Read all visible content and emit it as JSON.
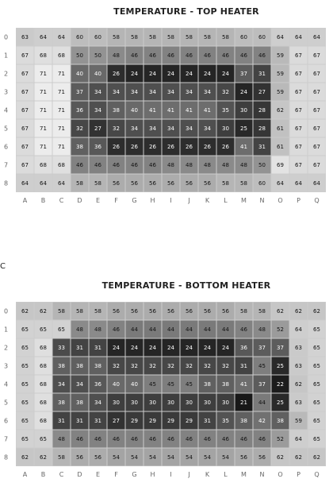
{
  "chart_data": [
    {
      "type": "heatmap",
      "panel": "",
      "title": "TEMPERATURE - TOP HEATER",
      "x_labels": [
        "A",
        "B",
        "C",
        "D",
        "E",
        "F",
        "G",
        "H",
        "I",
        "J",
        "K",
        "L",
        "M",
        "N",
        "O",
        "P",
        "Q"
      ],
      "y_labels": [
        "0",
        "1",
        "2",
        "3",
        "4",
        "5",
        "6",
        "7",
        "8"
      ],
      "values": [
        [
          63,
          64,
          64,
          60,
          60,
          58,
          58,
          58,
          58,
          58,
          58,
          58,
          60,
          60,
          64,
          64,
          64
        ],
        [
          67,
          68,
          68,
          50,
          50,
          48,
          46,
          46,
          46,
          46,
          46,
          46,
          46,
          46,
          59,
          67,
          67
        ],
        [
          67,
          71,
          71,
          40,
          40,
          26,
          24,
          24,
          24,
          24,
          24,
          24,
          37,
          31,
          59,
          67,
          67
        ],
        [
          67,
          71,
          71,
          37,
          34,
          34,
          34,
          34,
          34,
          34,
          34,
          32,
          24,
          27,
          59,
          67,
          67
        ],
        [
          67,
          71,
          71,
          36,
          34,
          38,
          40,
          41,
          41,
          41,
          41,
          35,
          30,
          28,
          62,
          67,
          67
        ],
        [
          67,
          71,
          71,
          32,
          27,
          32,
          34,
          34,
          34,
          34,
          34,
          30,
          25,
          28,
          61,
          67,
          67
        ],
        [
          67,
          71,
          71,
          38,
          36,
          26,
          26,
          26,
          26,
          26,
          26,
          26,
          41,
          31,
          61,
          67,
          67
        ],
        [
          67,
          68,
          68,
          46,
          46,
          46,
          46,
          46,
          48,
          48,
          48,
          48,
          48,
          50,
          69,
          67,
          67
        ],
        [
          64,
          64,
          64,
          58,
          58,
          56,
          56,
          56,
          56,
          56,
          56,
          58,
          58,
          60,
          64,
          64,
          64
        ]
      ],
      "color_scale": {
        "low": "#000000",
        "high": "#ffffff",
        "min": 20,
        "max": 72
      }
    },
    {
      "type": "heatmap",
      "panel": "C",
      "title": "TEMPERATURE - BOTTOM HEATER",
      "x_labels": [
        "A",
        "B",
        "C",
        "D",
        "E",
        "F",
        "G",
        "H",
        "I",
        "J",
        "K",
        "L",
        "M",
        "N",
        "O",
        "P",
        "Q"
      ],
      "y_labels": [
        "0",
        "1",
        "2",
        "3",
        "4",
        "5",
        "6",
        "7",
        "8"
      ],
      "values": [
        [
          62,
          62,
          58,
          58,
          58,
          56,
          56,
          56,
          56,
          56,
          56,
          56,
          58,
          58,
          62,
          62,
          62
        ],
        [
          65,
          65,
          65,
          48,
          48,
          46,
          44,
          44,
          44,
          44,
          44,
          44,
          46,
          48,
          52,
          64,
          65
        ],
        [
          65,
          68,
          33,
          31,
          31,
          24,
          24,
          24,
          24,
          24,
          24,
          24,
          36,
          37,
          37,
          63,
          65
        ],
        [
          65,
          68,
          38,
          38,
          38,
          32,
          32,
          32,
          32,
          32,
          32,
          32,
          31,
          45,
          25,
          63,
          65
        ],
        [
          65,
          68,
          34,
          34,
          36,
          40,
          40,
          45,
          45,
          45,
          38,
          38,
          41,
          37,
          22,
          62,
          65
        ],
        [
          65,
          68,
          38,
          38,
          34,
          30,
          30,
          30,
          30,
          30,
          30,
          30,
          21,
          44,
          25,
          63,
          65
        ],
        [
          65,
          68,
          31,
          31,
          31,
          27,
          29,
          29,
          29,
          29,
          31,
          35,
          38,
          42,
          38,
          59,
          65
        ],
        [
          65,
          65,
          48,
          46,
          46,
          46,
          46,
          46,
          46,
          46,
          46,
          46,
          46,
          46,
          52,
          64,
          65
        ],
        [
          62,
          62,
          58,
          56,
          56,
          54,
          54,
          54,
          54,
          54,
          54,
          54,
          56,
          56,
          62,
          62,
          62
        ]
      ],
      "color_scale": {
        "low": "#000000",
        "high": "#ffffff",
        "min": 20,
        "max": 72
      }
    }
  ]
}
